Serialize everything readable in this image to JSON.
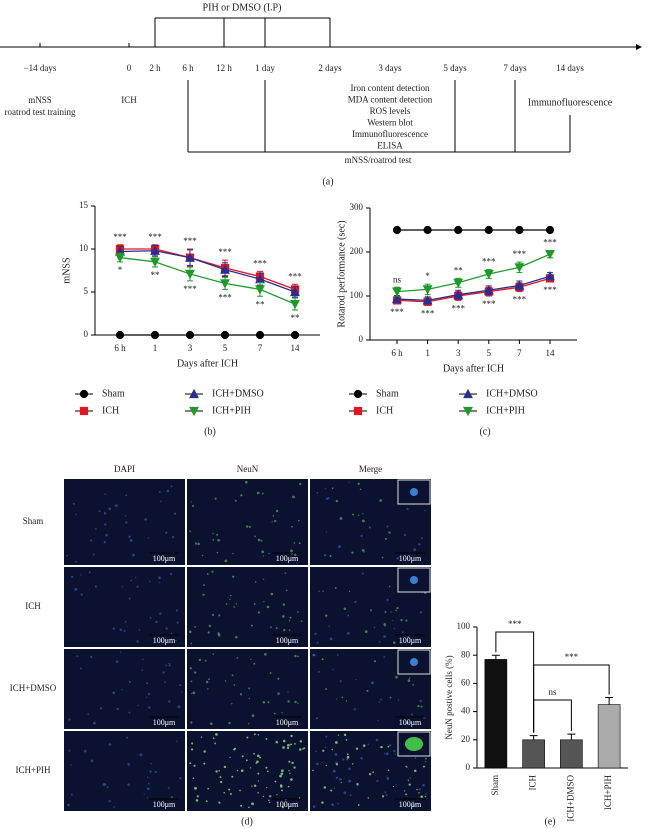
{
  "figure": {
    "panel_labels": [
      "(a)",
      "(b)",
      "(c)",
      "(d)",
      "(e)"
    ]
  },
  "timeline": {
    "treatment": "PIH or DMSO (I.P)",
    "times": [
      "−14 days",
      "0",
      "2 h",
      "6 h",
      "12 h",
      "1 day",
      "2 days",
      "3 days",
      "5 days",
      "7 days",
      "14 days"
    ],
    "baseline": [
      "mNSS",
      "roatrod test training"
    ],
    "injury": "ICH",
    "assays": [
      "Iron content detection",
      "MDA content detection",
      "ROS levels",
      "Western blot",
      "Immunofluorescence",
      "ELISA"
    ],
    "late_assay": "Immunofluorescence",
    "behavior": "mNSS/roatrod test"
  },
  "micrographs": {
    "columns": [
      "DAPI",
      "NeuN",
      "Merge"
    ],
    "rows": [
      "Sham",
      "ICH",
      "ICH+DMSO",
      "ICH+PIH"
    ],
    "scale_bar": "100μm"
  },
  "chart_data": [
    {
      "type": "line",
      "ylabel": "mNSS",
      "xlabel": "Days after ICH",
      "categories": [
        "6 h",
        "1",
        "3",
        "5",
        "7",
        "14"
      ],
      "ylim": [
        0,
        15
      ],
      "yticks": [
        0,
        5,
        10,
        15
      ],
      "legend": "below",
      "series": [
        {
          "name": "Sham",
          "color": "#000000",
          "marker": "circle",
          "values": [
            0,
            0,
            0,
            0,
            0,
            0
          ],
          "errors": [
            0,
            0,
            0,
            0,
            0,
            0
          ]
        },
        {
          "name": "ICH",
          "color": "#e3151f",
          "marker": "square",
          "values": [
            10,
            10,
            9,
            7.8,
            6.8,
            5.3
          ],
          "errors": [
            0.5,
            0.5,
            1,
            0.9,
            0.6,
            0.6
          ]
        },
        {
          "name": "ICH+DMSO",
          "color": "#2b2d8f",
          "marker": "triangle",
          "values": [
            9.7,
            9.8,
            9,
            7.6,
            6.5,
            5
          ],
          "errors": [
            0.6,
            0.6,
            0.9,
            0.8,
            0.7,
            0.6
          ]
        },
        {
          "name": "ICH+PIH",
          "color": "#1f9a2a",
          "marker": "triangle-down",
          "values": [
            9,
            8.5,
            7.1,
            6,
            5.3,
            3.6
          ],
          "errors": [
            0.5,
            0.6,
            0.8,
            0.7,
            0.8,
            0.7
          ]
        }
      ],
      "annotations_above": [
        "***",
        "***",
        "***",
        "***",
        "***",
        "***"
      ],
      "annotations_below": [
        "*",
        "**",
        "***",
        "***",
        "**",
        "**"
      ]
    },
    {
      "type": "line",
      "ylabel": "Rotarod performance (sec)",
      "xlabel": "Days after ICH",
      "categories": [
        "6 h",
        "1",
        "3",
        "5",
        "7",
        "14"
      ],
      "ylim": [
        0,
        300
      ],
      "yticks": [
        0,
        100,
        200,
        300
      ],
      "legend": "below",
      "series": [
        {
          "name": "Sham",
          "color": "#000000",
          "marker": "circle",
          "values": [
            250,
            250,
            250,
            250,
            250,
            250
          ],
          "errors": [
            0,
            0,
            0,
            0,
            0,
            0
          ]
        },
        {
          "name": "ICH",
          "color": "#e3151f",
          "marker": "square",
          "values": [
            90,
            87,
            100,
            110,
            120,
            140
          ],
          "errors": [
            8,
            8,
            10,
            10,
            10,
            8
          ]
        },
        {
          "name": "ICH+DMSO",
          "color": "#2b2d8f",
          "marker": "triangle",
          "values": [
            93,
            90,
            103,
            113,
            124,
            145
          ],
          "errors": [
            8,
            8,
            10,
            10,
            10,
            8
          ]
        },
        {
          "name": "ICH+PIH",
          "color": "#1f9a2a",
          "marker": "triangle-down",
          "values": [
            110,
            115,
            130,
            150,
            165,
            195
          ],
          "errors": [
            10,
            12,
            10,
            10,
            12,
            8
          ]
        }
      ],
      "annotations_above": [
        "ns",
        "*",
        "**",
        "***",
        "***",
        "***"
      ],
      "annotations_below": [
        "***",
        "***",
        "***",
        "***",
        "***",
        "***"
      ]
    },
    {
      "type": "bar",
      "ylabel": "NeuN postive cells (%)",
      "categories": [
        "Sham",
        "ICH",
        "ICH+DMSO",
        "ICH+PIH"
      ],
      "values": [
        77,
        20,
        20,
        45
      ],
      "errors": [
        3,
        3,
        4,
        5
      ],
      "colors": [
        "#111111",
        "#555555",
        "#555555",
        "#aaaaaa"
      ],
      "ylim": [
        0,
        100
      ],
      "yticks": [
        0,
        20,
        40,
        60,
        80,
        100
      ],
      "comparisons": [
        "***",
        "ns",
        "***"
      ]
    }
  ]
}
